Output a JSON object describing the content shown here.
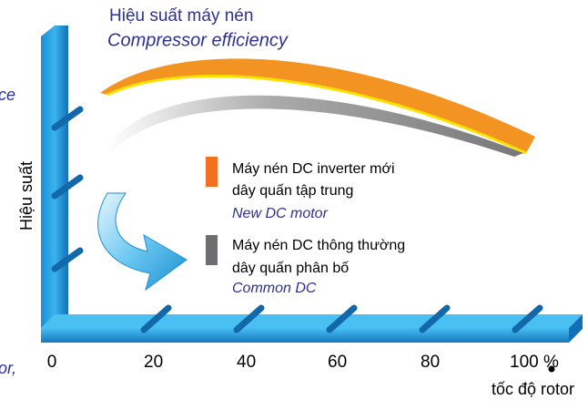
{
  "title": {
    "vi": "Hiệu suất máy nén",
    "en": "Compressor efficiency"
  },
  "fragments": [
    "ce",
    "or,"
  ],
  "y_axis": {
    "label": "Hiệu suất"
  },
  "x_axis": {
    "label": "tốc độ rotor",
    "ticks": [
      "0",
      "20",
      "40",
      "60",
      "80",
      "100 %"
    ]
  },
  "legend": [
    {
      "lines": [
        "Máy nén DC inverter mới",
        "dây quấn tập trung"
      ],
      "en": "New DC motor"
    },
    {
      "lines": [
        "Máy nén DC thông thường",
        "dây quấn phân bố"
      ],
      "en": "Common DC"
    }
  ]
}
